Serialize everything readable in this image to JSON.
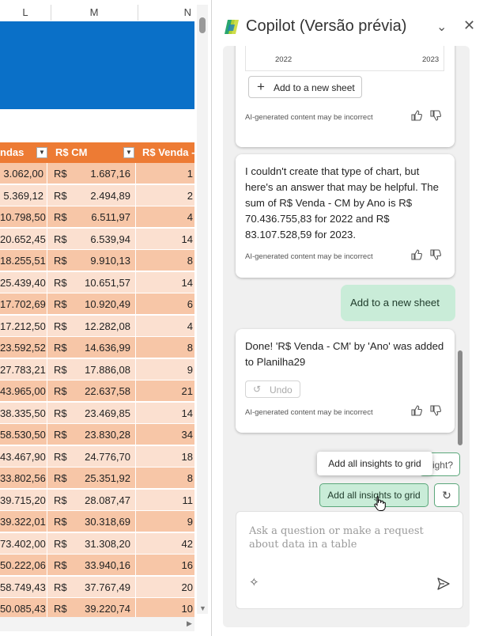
{
  "sheet": {
    "columns": [
      "L",
      "M",
      "N"
    ],
    "headers": [
      "ndas",
      "R$ CM",
      "R$ Venda -"
    ],
    "currency": "R$",
    "rows": [
      [
        "3.062,00",
        "1.687,16",
        "1"
      ],
      [
        "5.369,12",
        "2.494,89",
        "2"
      ],
      [
        "10.798,50",
        "6.511,97",
        "4"
      ],
      [
        "20.652,45",
        "6.539,94",
        "14"
      ],
      [
        "18.255,51",
        "9.910,13",
        "8"
      ],
      [
        "25.439,40",
        "10.651,57",
        "14"
      ],
      [
        "17.702,69",
        "10.920,49",
        "6"
      ],
      [
        "17.212,50",
        "12.282,08",
        "4"
      ],
      [
        "23.592,52",
        "14.636,99",
        "8"
      ],
      [
        "27.783,21",
        "17.886,08",
        "9"
      ],
      [
        "43.965,00",
        "22.637,58",
        "21"
      ],
      [
        "38.335,50",
        "23.469,85",
        "14"
      ],
      [
        "58.530,50",
        "23.830,28",
        "34"
      ],
      [
        "43.467,90",
        "24.776,70",
        "18"
      ],
      [
        "33.802,56",
        "25.351,92",
        "8"
      ],
      [
        "39.715,20",
        "28.087,47",
        "11"
      ],
      [
        "39.322,01",
        "30.318,69",
        "9"
      ],
      [
        "73.402,00",
        "31.308,20",
        "42"
      ],
      [
        "50.222,06",
        "33.940,16",
        "16"
      ],
      [
        "58.749,43",
        "37.767,49",
        "20"
      ],
      [
        "50.085,43",
        "39.220,74",
        "10"
      ]
    ],
    "colors": {
      "banner": "#0a70c8",
      "header": "#ed7b34",
      "row_dark": "#f7c6a7",
      "row_light": "#fbe0d0"
    }
  },
  "pane": {
    "title": "Copilot (Versão prévia)",
    "chart_years": [
      "2022",
      "2023"
    ],
    "add_sheet_button": "Add to a new sheet",
    "disclaimer": "AI-generated content may be incorrect",
    "message_1": "I couldn't create that type of chart, but here's an answer that may be helpful. The sum of R$ Venda - CM by Ano is R$ 70.436.755,83 for 2022 and R$ 83.107.528,59 for 2023.",
    "user_message": "Add to a new sheet",
    "message_2": "Done! 'R$ Venda - CM' by 'Ano' was added to Planilha29",
    "undo_label": "Undo",
    "suggestion_partial": "sight?",
    "tooltip": "Add all insights to grid",
    "add_all_button": "Add all insights to grid",
    "input_placeholder": "Ask a question or make a request about data in a table",
    "colors": {
      "user_bubble": "#c9ecd8",
      "chat_bg": "#f0f0f0"
    }
  }
}
